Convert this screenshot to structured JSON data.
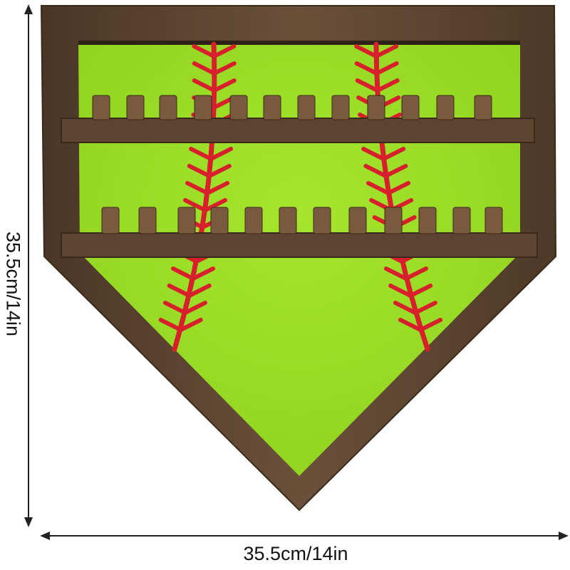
{
  "dimensions": {
    "width_label": "35.5cm/14in",
    "height_label": "35.5cm/14in"
  },
  "product": {
    "frame_color": "#5a4330",
    "board_color": "#9ee02a",
    "stitch_color": "#d8202c",
    "shelves": 2,
    "pegs_per_shelf": 12
  }
}
